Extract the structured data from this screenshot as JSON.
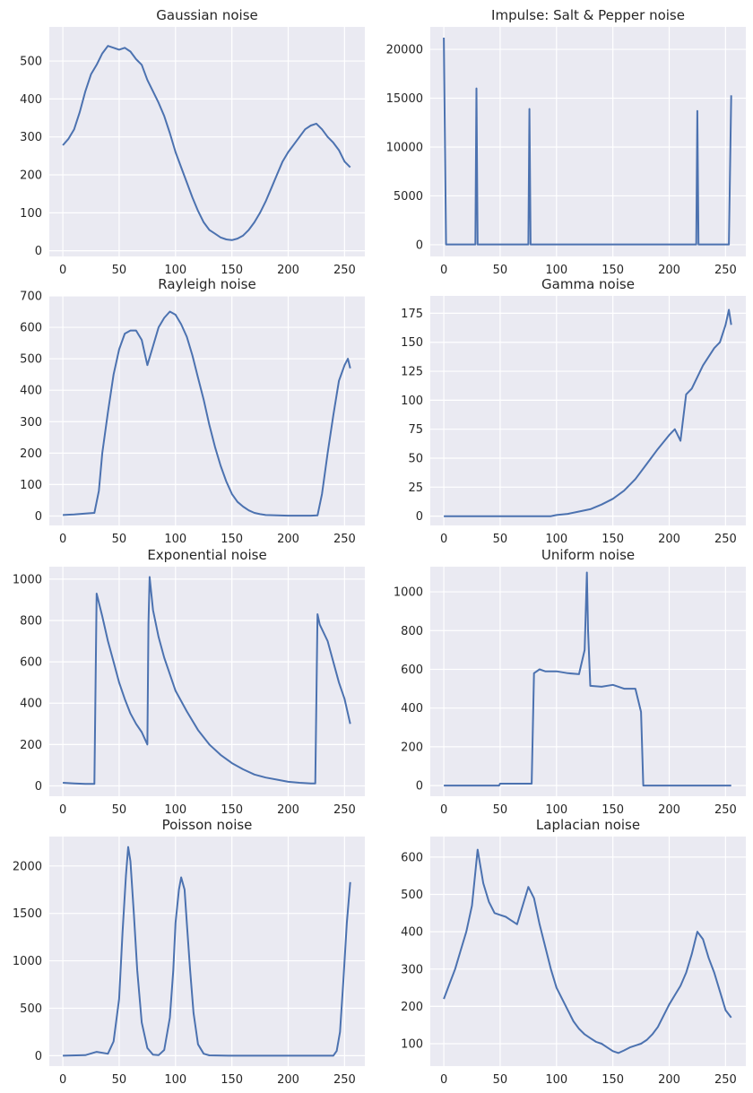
{
  "series_color": "#4C72B0",
  "background_color": "#EAEAF2",
  "chart_data": [
    {
      "type": "line",
      "title": "Gaussian noise",
      "xlim": [
        -12,
        268
      ],
      "ylim": [
        -15,
        590
      ],
      "xticks": [
        0,
        50,
        100,
        150,
        200,
        250
      ],
      "yticks": [
        0,
        100,
        200,
        300,
        400,
        500
      ],
      "grid": true,
      "series": [
        {
          "x": [
            0,
            5,
            10,
            15,
            20,
            25,
            30,
            35,
            40,
            45,
            50,
            55,
            60,
            65,
            70,
            75,
            80,
            85,
            90,
            95,
            100,
            105,
            110,
            115,
            120,
            125,
            130,
            135,
            140,
            145,
            150,
            155,
            160,
            165,
            170,
            175,
            180,
            185,
            190,
            195,
            200,
            205,
            210,
            215,
            220,
            225,
            230,
            235,
            240,
            245,
            250,
            255
          ],
          "y": [
            278,
            295,
            320,
            365,
            420,
            465,
            490,
            520,
            540,
            535,
            530,
            535,
            525,
            505,
            490,
            450,
            420,
            390,
            355,
            310,
            260,
            220,
            180,
            140,
            105,
            75,
            55,
            45,
            35,
            30,
            28,
            32,
            40,
            55,
            75,
            100,
            130,
            165,
            200,
            235,
            260,
            280,
            300,
            320,
            330,
            335,
            320,
            300,
            285,
            265,
            235,
            220
          ]
        }
      ]
    },
    {
      "type": "line",
      "title": "Impulse: Salt & Pepper noise",
      "xlim": [
        -12,
        268
      ],
      "ylim": [
        -1200,
        22300
      ],
      "xticks": [
        0,
        50,
        100,
        150,
        200,
        250
      ],
      "yticks": [
        0,
        5000,
        10000,
        15000,
        20000
      ],
      "grid": true,
      "series": [
        {
          "x": [
            0,
            2,
            28,
            29,
            30,
            75,
            76,
            77,
            224,
            225,
            226,
            253,
            255
          ],
          "y": [
            21200,
            30,
            30,
            16000,
            30,
            30,
            13900,
            30,
            30,
            13700,
            30,
            30,
            15300
          ]
        }
      ]
    },
    {
      "type": "line",
      "title": "Rayleigh noise",
      "xlim": [
        -12,
        268
      ],
      "ylim": [
        -30,
        700
      ],
      "xticks": [
        0,
        50,
        100,
        150,
        200,
        250
      ],
      "yticks": [
        0,
        100,
        200,
        300,
        400,
        500,
        600,
        700
      ],
      "grid": true,
      "series": [
        {
          "x": [
            0,
            10,
            20,
            28,
            32,
            35,
            40,
            45,
            50,
            55,
            60,
            65,
            70,
            75,
            80,
            85,
            90,
            95,
            100,
            105,
            110,
            115,
            120,
            125,
            130,
            135,
            140,
            145,
            150,
            155,
            160,
            165,
            170,
            175,
            180,
            190,
            200,
            210,
            220,
            226,
            230,
            235,
            240,
            245,
            250,
            253,
            255
          ],
          "y": [
            3,
            5,
            8,
            10,
            80,
            200,
            330,
            450,
            530,
            580,
            590,
            590,
            560,
            480,
            540,
            600,
            630,
            650,
            640,
            610,
            570,
            510,
            440,
            370,
            290,
            220,
            160,
            110,
            70,
            45,
            30,
            18,
            10,
            6,
            3,
            2,
            1,
            1,
            1,
            2,
            70,
            200,
            320,
            430,
            480,
            500,
            470
          ]
        }
      ]
    },
    {
      "type": "line",
      "title": "Gamma noise",
      "xlim": [
        -12,
        268
      ],
      "ylim": [
        -8,
        190
      ],
      "xticks": [
        0,
        50,
        100,
        150,
        200,
        250
      ],
      "yticks": [
        0,
        25,
        50,
        75,
        100,
        125,
        150,
        175
      ],
      "grid": true,
      "series": [
        {
          "x": [
            0,
            50,
            95,
            100,
            110,
            120,
            130,
            140,
            150,
            160,
            170,
            180,
            190,
            200,
            205,
            210,
            215,
            220,
            230,
            240,
            245,
            250,
            253,
            255
          ],
          "y": [
            0,
            0,
            0,
            1,
            2,
            4,
            6,
            10,
            15,
            22,
            32,
            45,
            58,
            70,
            75,
            65,
            105,
            110,
            130,
            145,
            150,
            165,
            178,
            165
          ]
        }
      ]
    },
    {
      "type": "line",
      "title": "Exponential noise",
      "xlim": [
        -12,
        268
      ],
      "ylim": [
        -50,
        1060
      ],
      "xticks": [
        0,
        50,
        100,
        150,
        200,
        250
      ],
      "yticks": [
        0,
        200,
        400,
        600,
        800,
        1000
      ],
      "grid": true,
      "series": [
        {
          "x": [
            0,
            10,
            20,
            28,
            30,
            35,
            40,
            45,
            50,
            55,
            60,
            65,
            70,
            75,
            76,
            77,
            80,
            85,
            90,
            95,
            100,
            110,
            120,
            130,
            140,
            150,
            160,
            170,
            180,
            190,
            200,
            210,
            220,
            224,
            226,
            228,
            235,
            240,
            245,
            250,
            255
          ],
          "y": [
            15,
            12,
            10,
            10,
            930,
            820,
            700,
            600,
            500,
            420,
            350,
            300,
            260,
            200,
            780,
            1010,
            850,
            720,
            620,
            540,
            460,
            360,
            270,
            200,
            150,
            110,
            80,
            55,
            40,
            30,
            20,
            15,
            12,
            12,
            830,
            780,
            700,
            600,
            500,
            420,
            300
          ]
        }
      ]
    },
    {
      "type": "line",
      "title": "Uniform noise",
      "xlim": [
        -12,
        268
      ],
      "ylim": [
        -55,
        1130
      ],
      "xticks": [
        0,
        50,
        100,
        150,
        200,
        250
      ],
      "yticks": [
        0,
        200,
        400,
        600,
        800,
        1000
      ],
      "grid": true,
      "series": [
        {
          "x": [
            0,
            49,
            50,
            78,
            80,
            85,
            90,
            100,
            110,
            120,
            125,
            127,
            128,
            130,
            140,
            150,
            160,
            170,
            175,
            177,
            180,
            200,
            255
          ],
          "y": [
            0,
            0,
            10,
            10,
            580,
            600,
            590,
            590,
            580,
            575,
            700,
            1100,
            800,
            515,
            510,
            520,
            500,
            500,
            380,
            0,
            0,
            0,
            0
          ]
        }
      ]
    },
    {
      "type": "line",
      "title": "Poisson noise",
      "xlim": [
        -12,
        268
      ],
      "ylim": [
        -110,
        2310
      ],
      "xticks": [
        0,
        50,
        100,
        150,
        200,
        250
      ],
      "yticks": [
        0,
        500,
        1000,
        1500,
        2000
      ],
      "grid": true,
      "series": [
        {
          "x": [
            0,
            20,
            30,
            40,
            45,
            50,
            53,
            56,
            58,
            60,
            63,
            66,
            70,
            75,
            80,
            85,
            90,
            95,
            98,
            100,
            103,
            105,
            108,
            110,
            113,
            116,
            120,
            125,
            130,
            150,
            200,
            240,
            243,
            246,
            249,
            252,
            255
          ],
          "y": [
            0,
            5,
            40,
            20,
            150,
            600,
            1300,
            1900,
            2200,
            2050,
            1500,
            900,
            350,
            80,
            10,
            5,
            60,
            400,
            900,
            1400,
            1750,
            1880,
            1750,
            1400,
            900,
            450,
            120,
            20,
            3,
            0,
            0,
            0,
            50,
            250,
            800,
            1400,
            1830
          ]
        }
      ]
    },
    {
      "type": "line",
      "title": "Laplacian noise",
      "xlim": [
        -12,
        268
      ],
      "ylim": [
        40,
        655
      ],
      "xticks": [
        0,
        50,
        100,
        150,
        200,
        250
      ],
      "yticks": [
        100,
        200,
        300,
        400,
        500,
        600
      ],
      "grid": true,
      "series": [
        {
          "x": [
            0,
            5,
            10,
            15,
            20,
            25,
            28,
            30,
            35,
            40,
            45,
            50,
            55,
            60,
            65,
            70,
            75,
            80,
            85,
            90,
            95,
            100,
            105,
            110,
            115,
            120,
            125,
            130,
            135,
            140,
            145,
            150,
            155,
            160,
            165,
            170,
            175,
            180,
            185,
            190,
            195,
            200,
            205,
            210,
            215,
            220,
            225,
            230,
            235,
            240,
            245,
            250,
            255
          ],
          "y": [
            220,
            260,
            300,
            350,
            400,
            470,
            560,
            620,
            530,
            480,
            450,
            445,
            440,
            430,
            420,
            470,
            520,
            490,
            420,
            360,
            300,
            250,
            220,
            190,
            160,
            140,
            125,
            115,
            105,
            100,
            90,
            80,
            75,
            82,
            90,
            95,
            100,
            110,
            125,
            145,
            175,
            205,
            230,
            255,
            290,
            340,
            400,
            380,
            330,
            290,
            240,
            190,
            170
          ]
        }
      ]
    }
  ]
}
